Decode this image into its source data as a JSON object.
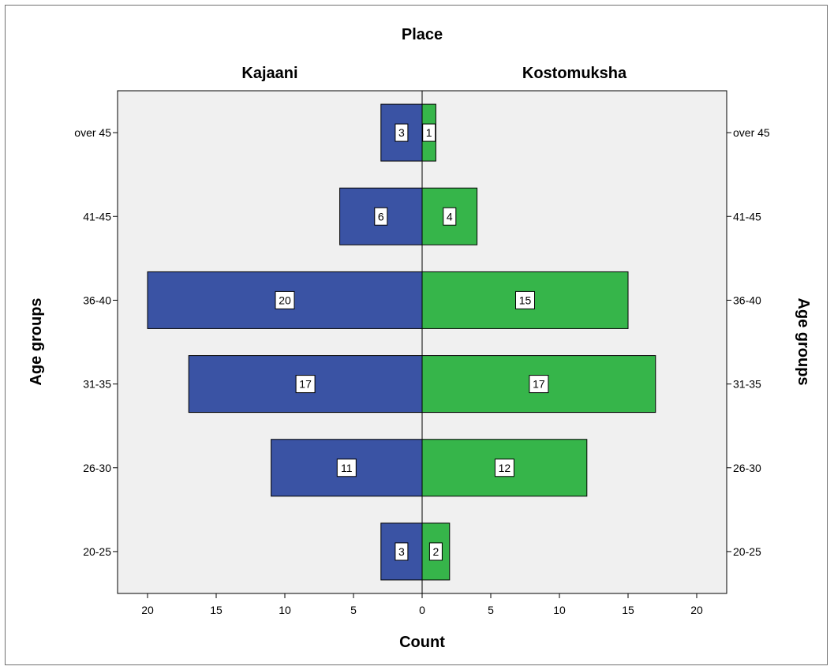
{
  "chart_data": {
    "type": "bar",
    "orientation": "horizontal",
    "layout": "population-pyramid",
    "title": "Place",
    "xlabel": "Count",
    "ylabel": "Age groups",
    "categories": [
      "over 45",
      "41-45",
      "36-40",
      "31-35",
      "26-30",
      "20-25"
    ],
    "series": [
      {
        "name": "Kajaani",
        "side": "left",
        "color": "#3A53A4",
        "values": [
          3,
          6,
          20,
          17,
          11,
          3
        ]
      },
      {
        "name": "Kostomuksha",
        "side": "right",
        "color": "#36B54A",
        "values": [
          1,
          4,
          15,
          17,
          12,
          2
        ]
      }
    ],
    "xlim": [
      0,
      22
    ],
    "x_ticks": [
      20,
      15,
      10,
      5,
      0,
      5,
      10,
      15,
      20
    ],
    "data_labels": true,
    "grid": false,
    "plot_background": "#F0F0F0"
  }
}
